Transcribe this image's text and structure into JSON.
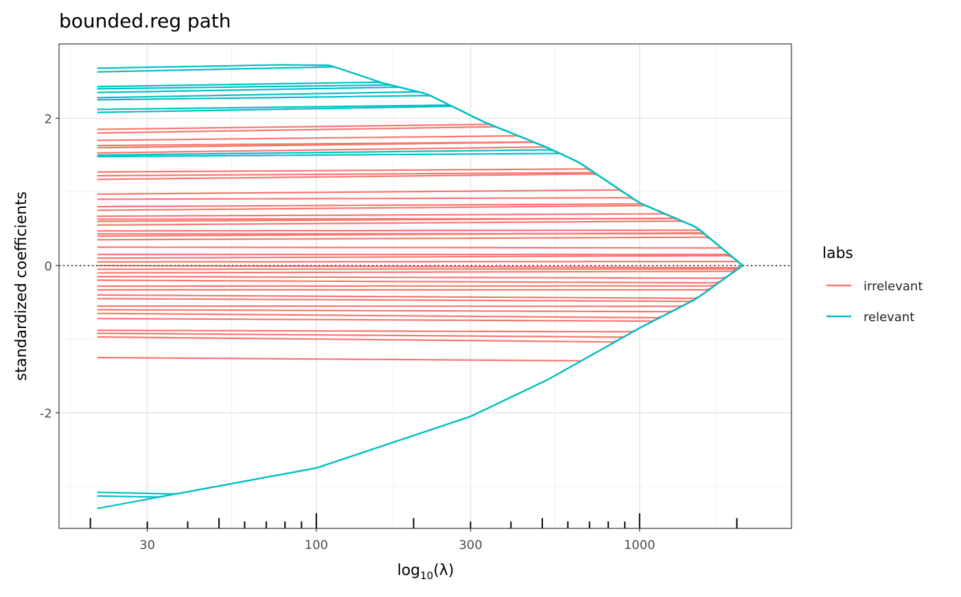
{
  "chart_data": {
    "type": "line",
    "title": "bounded.reg path",
    "xlabel": "log10(λ)",
    "ylabel": "standardized coefficients",
    "x_scale": "log10",
    "xlim": [
      16,
      2950
    ],
    "ylim": [
      -3.57,
      3.01
    ],
    "x_ticks": [
      30,
      100,
      300,
      1000
    ],
    "x_tick_labels": [
      "30",
      "100",
      "300",
      "1000"
    ],
    "y_ticks": [
      -2,
      0,
      2
    ],
    "y_tick_labels": [
      "-2",
      "0",
      "2"
    ],
    "lambda_range": [
      21,
      2085
    ],
    "logticks": [
      20,
      30,
      40,
      50,
      60,
      70,
      80,
      90,
      100,
      200,
      300,
      400,
      500,
      600,
      700,
      800,
      900,
      1000,
      2000
    ],
    "zero_line": 0,
    "grid": true,
    "legend": {
      "title": "labs",
      "placement": "right",
      "entries": [
        "irrelevant",
        "relevant"
      ]
    },
    "colors": {
      "irrelevant": "#F8766D",
      "relevant": "#00BFC4"
    },
    "upper_bound": [
      [
        21,
        2.75
      ],
      [
        110,
        2.72
      ],
      [
        160,
        2.48
      ],
      [
        220,
        2.33
      ],
      [
        330,
        1.95
      ],
      [
        520,
        1.6
      ],
      [
        650,
        1.4
      ],
      [
        1000,
        0.85
      ],
      [
        1500,
        0.52
      ],
      [
        2085,
        0
      ]
    ],
    "lower_bound": [
      [
        21,
        -3.3
      ],
      [
        100,
        -2.75
      ],
      [
        300,
        -2.05
      ],
      [
        520,
        -1.55
      ],
      [
        1000,
        -0.85
      ],
      [
        1500,
        -0.45
      ],
      [
        2085,
        0
      ]
    ],
    "series": [
      {
        "name": "irrelevant",
        "start_values": [
          1.85,
          1.8,
          1.7,
          1.63,
          1.6,
          1.53,
          1.27,
          1.22,
          1.17,
          0.97,
          0.9,
          0.8,
          0.75,
          0.67,
          0.63,
          0.6,
          0.55,
          0.47,
          0.43,
          0.4,
          0.35,
          0.25,
          0.15,
          0.1,
          0.05,
          0.0,
          -0.05,
          -0.1,
          -0.15,
          -0.2,
          -0.28,
          -0.33,
          -0.4,
          -0.45,
          -0.55,
          -0.6,
          -0.65,
          -0.72,
          -0.88,
          -0.92,
          -0.97,
          -1.25
        ]
      },
      {
        "name": "relevant",
        "start_values": [
          2.68,
          2.63,
          2.43,
          2.4,
          2.35,
          2.28,
          2.25,
          2.12,
          2.08,
          1.5,
          1.48,
          -3.08,
          -3.13,
          -3.3
        ]
      }
    ]
  }
}
